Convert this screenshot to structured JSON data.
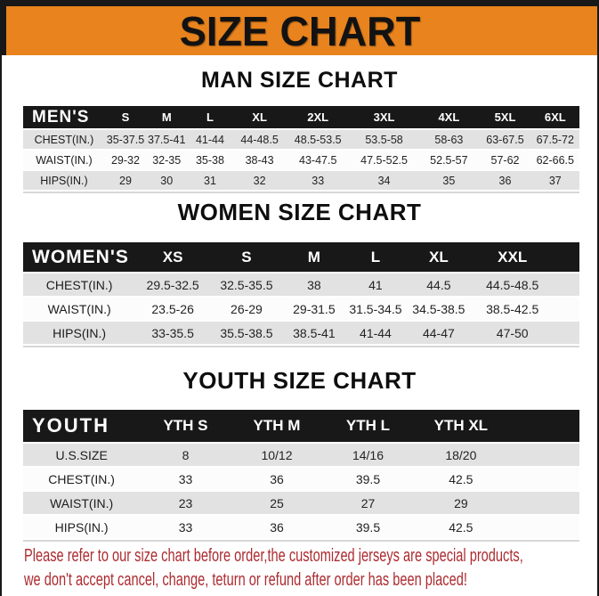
{
  "title": "SIZE CHART",
  "theme": {
    "orange": "#E8831E",
    "bar-black": "#181818",
    "row-gray": "#E2E2E2",
    "row-white": "#FCFCFC",
    "red": "#AC2B30"
  },
  "tables": [
    {
      "heading": "MAN SIZE CHART",
      "header_label": "MEN'S",
      "columns": [
        "S",
        "M",
        "L",
        "XL",
        "2XL",
        "3XL",
        "4XL",
        "5XL",
        "6XL"
      ],
      "rows": [
        {
          "label": "CHEST(IN.)",
          "values": [
            "35-37.5",
            "37.5-41",
            "41-44",
            "44-48.5",
            "48.5-53.5",
            "53.5-58",
            "58-63",
            "63-67.5",
            "67.5-72"
          ]
        },
        {
          "label": "WAIST(IN.)",
          "values": [
            "29-32",
            "32-35",
            "35-38",
            "38-43",
            "43-47.5",
            "47.5-52.5",
            "52.5-57",
            "57-62",
            "62-66.5"
          ]
        },
        {
          "label": "HIPS(IN.)",
          "values": [
            "29",
            "30",
            "31",
            "32",
            "33",
            "34",
            "35",
            "36",
            "37"
          ]
        }
      ]
    },
    {
      "heading": "WOMEN SIZE CHART",
      "header_label": "WOMEN'S",
      "columns": [
        "XS",
        "S",
        "M",
        "L",
        "XL",
        "XXL"
      ],
      "rows": [
        {
          "label": "CHEST(IN.)",
          "values": [
            "29.5-32.5",
            "32.5-35.5",
            "38",
            "41",
            "44.5",
            "44.5-48.5"
          ]
        },
        {
          "label": "WAIST(IN.)",
          "values": [
            "23.5-26",
            "26-29",
            "29-31.5",
            "31.5-34.5",
            "34.5-38.5",
            "38.5-42.5"
          ]
        },
        {
          "label": "HIPS(IN.)",
          "values": [
            "33-35.5",
            "35.5-38.5",
            "38.5-41",
            "41-44",
            "44-47",
            "47-50"
          ]
        }
      ]
    },
    {
      "heading": "YOUTH SIZE CHART",
      "header_label": "YOUTH",
      "columns": [
        "YTH S",
        "YTH M",
        "YTH L",
        "YTH XL"
      ],
      "rows": [
        {
          "label": "U.S.SIZE",
          "values": [
            "8",
            "10/12",
            "14/16",
            "18/20"
          ]
        },
        {
          "label": "CHEST(IN.)",
          "values": [
            "33",
            "36",
            "39.5",
            "42.5"
          ]
        },
        {
          "label": "WAIST(IN.)",
          "values": [
            "23",
            "25",
            "27",
            "29"
          ]
        },
        {
          "label": "HIPS(IN.)",
          "values": [
            "33",
            "36",
            "39.5",
            "42.5"
          ]
        }
      ]
    }
  ],
  "footer": {
    "line1": "Please refer to our size chart before order,the customized jerseys are special products,",
    "line2": "we don't accept cancel, change, teturn or refund after order has been placed!"
  }
}
